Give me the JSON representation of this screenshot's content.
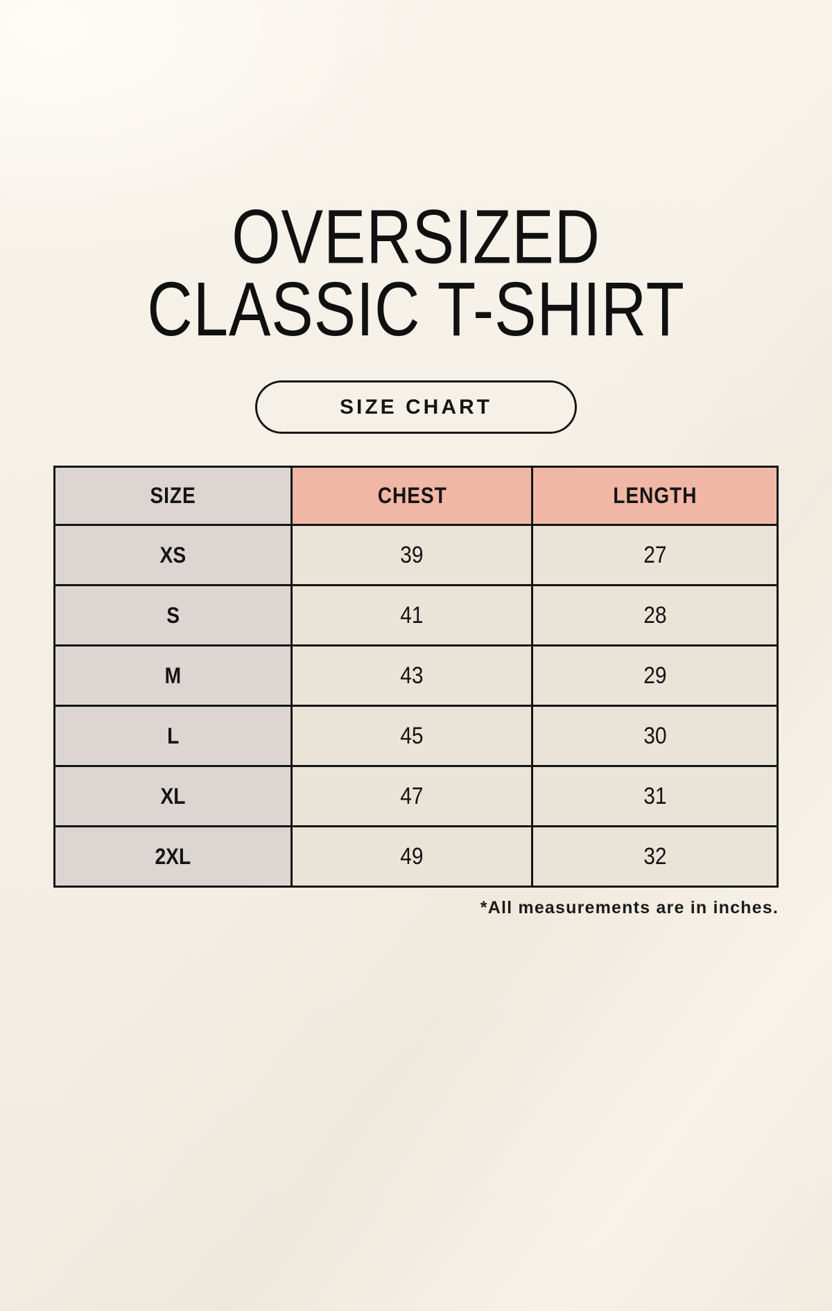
{
  "page": {
    "title_line1": "OVERSIZED",
    "title_line2": "CLASSIC T-SHIRT",
    "size_chart_button_label": "SIZE CHART",
    "footnote": "*All measurements are in inches."
  },
  "chart_data": {
    "type": "table",
    "title": "OVERSIZED CLASSIC T-SHIRT — SIZE CHART",
    "columns": [
      "SIZE",
      "CHEST",
      "LENGTH"
    ],
    "rows": [
      [
        "XS",
        "39",
        "27"
      ],
      [
        "S",
        "41",
        "28"
      ],
      [
        "M",
        "43",
        "29"
      ],
      [
        "L",
        "45",
        "30"
      ],
      [
        "XL",
        "47",
        "31"
      ],
      [
        "2XL",
        "49",
        "32"
      ]
    ],
    "units": "inches",
    "note": "*All measurements are in inches."
  },
  "colors": {
    "background_cream": "#f5f0e7",
    "table_cell_cream": "#eae3d8",
    "size_column_taupe": "#dcd5d1",
    "header_salmon": "#f0b7a6",
    "border_black": "#141414",
    "text_black": "#101010"
  }
}
